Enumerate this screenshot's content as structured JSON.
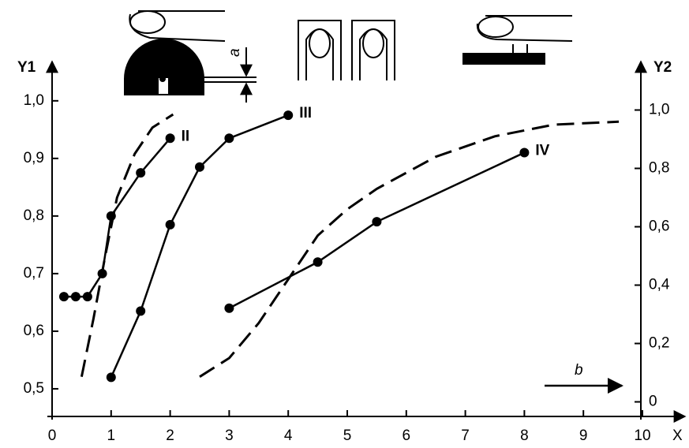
{
  "chart_data": {
    "type": "line",
    "x_label": "X",
    "y_label": "Y1",
    "y2_label": "Y2",
    "annotations": [
      "a",
      "b"
    ],
    "xlim": [
      0,
      10.8
    ],
    "xticks": [
      0,
      1,
      2,
      3,
      4,
      5,
      6,
      7,
      8,
      9,
      10
    ],
    "ylim": [
      0.452,
      1.06
    ],
    "yticks": [
      {
        "value": 0.5,
        "label": "0,5"
      },
      {
        "value": 0.6,
        "label": "0,6"
      },
      {
        "value": 0.7,
        "label": "0,7"
      },
      {
        "value": 0.8,
        "label": "0,8"
      },
      {
        "value": 0.9,
        "label": "0,9"
      },
      {
        "value": 1.0,
        "label": "1,0"
      }
    ],
    "y2lim": [
      -0.05,
      1.15
    ],
    "y2ticks": [
      0,
      {
        "value": 0.2,
        "label": "0,2"
      },
      {
        "value": 0.4,
        "label": "0,4"
      },
      {
        "value": 0.6,
        "label": "0,6"
      },
      {
        "value": 0.8,
        "label": "0,8"
      },
      {
        "value": 1.0,
        "label": "1,0"
      }
    ],
    "series": [
      {
        "name": "II",
        "color": "#000000",
        "style": "solid",
        "markers": true,
        "x": [
          0.2,
          0.4,
          0.6,
          0.85,
          1.0,
          1.5,
          2.0
        ],
        "values": [
          0.66,
          0.66,
          0.66,
          0.7,
          0.8,
          0.875,
          0.935
        ]
      },
      {
        "name": "III",
        "color": "#000000",
        "style": "solid",
        "markers": true,
        "x": [
          1.0,
          1.5,
          2.0,
          2.5,
          3.0,
          4.0
        ],
        "values": [
          0.52,
          0.635,
          0.785,
          0.885,
          0.935,
          0.975
        ]
      },
      {
        "name": "IV",
        "color": "#000000",
        "style": "solid",
        "markers": true,
        "x": [
          3.0,
          4.5,
          5.5,
          8.0
        ],
        "values": [
          0.64,
          0.72,
          0.79,
          0.91
        ]
      },
      {
        "color": "#000000",
        "style": "dashed",
        "markers": false,
        "axis": "y2",
        "x": [
          0.5,
          0.7,
          0.9,
          1.1,
          1.4,
          1.7,
          2.05
        ],
        "values": [
          0.086,
          0.284,
          0.5,
          0.7,
          0.85,
          0.94,
          0.985
        ]
      },
      {
        "color": "#000000",
        "style": "dashed",
        "markers": false,
        "axis": "y2",
        "x": [
          2.5,
          3.0,
          3.5,
          4.0,
          4.5,
          5.0,
          5.5,
          6.5,
          7.5,
          8.5,
          9.6
        ],
        "values": [
          0.086,
          0.15,
          0.27,
          0.42,
          0.57,
          0.66,
          0.73,
          0.84,
          0.91,
          0.95,
          0.96
        ]
      }
    ]
  }
}
